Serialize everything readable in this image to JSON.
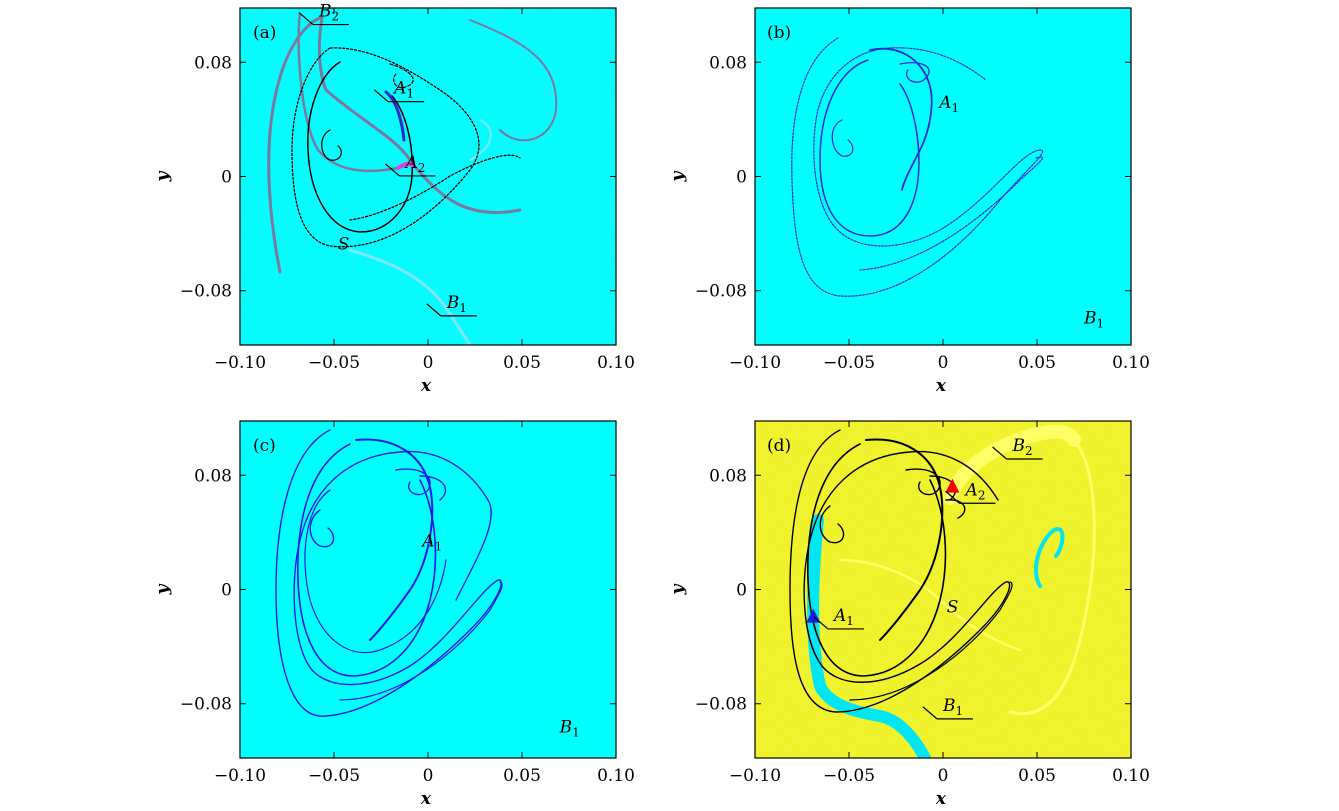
{
  "figure": {
    "background": "#ffffff",
    "colors": {
      "cyan": "#00ffff",
      "noise": "#1aa3c4",
      "yellow": "#f3f31a",
      "blue": "#1a1ae6",
      "black": "#000000",
      "grey_purple": "#7a7aa0",
      "pale_cyan": "#7fe6ff",
      "magenta": "#e040e0",
      "red": "#ff0000"
    }
  },
  "chart_data": [
    {
      "panel_label": "(a)",
      "type": "scatter",
      "xlabel": "x",
      "ylabel": "y",
      "xlim": [
        -0.1,
        0.1
      ],
      "ylim": [
        -0.118,
        0.118
      ],
      "xticks": [
        "−0.10",
        "−0.05",
        "0",
        "0.05",
        "0.10"
      ],
      "yticks": [
        "0.08",
        "0",
        "−0.08"
      ],
      "background": "cyan with speckled noise",
      "annotations": [
        {
          "label": "B",
          "sub": "2",
          "x": -0.058,
          "y": 0.112
        },
        {
          "label": "A",
          "sub": "1",
          "x": -0.018,
          "y": 0.058
        },
        {
          "label": "A",
          "sub": "2",
          "x": -0.012,
          "y": 0.006
        },
        {
          "label": "B",
          "sub": "1",
          "x": 0.01,
          "y": -0.092
        },
        {
          "label": "S",
          "x": -0.048,
          "y": -0.051
        }
      ]
    },
    {
      "panel_label": "(b)",
      "type": "scatter",
      "xlabel": "x",
      "ylabel": "y",
      "xlim": [
        -0.1,
        0.1
      ],
      "ylim": [
        -0.118,
        0.118
      ],
      "xticks": [
        "−0.10",
        "−0.05",
        "0",
        "0.05",
        "0.10"
      ],
      "yticks": [
        "0.08",
        "0",
        "−0.08"
      ],
      "background": "cyan",
      "annotations": [
        {
          "label": "A",
          "sub": "1",
          "x": -0.002,
          "y": 0.048
        },
        {
          "label": "B",
          "sub": "1",
          "x": 0.075,
          "y": -0.103
        }
      ]
    },
    {
      "panel_label": "(c)",
      "type": "scatter",
      "xlabel": "x",
      "ylabel": "y",
      "xlim": [
        -0.1,
        0.1
      ],
      "ylim": [
        -0.118,
        0.118
      ],
      "xticks": [
        "−0.10",
        "−0.05",
        "0",
        "0.05",
        "0.10"
      ],
      "yticks": [
        "0.08",
        "0",
        "−0.08"
      ],
      "background": "cyan",
      "annotations": [
        {
          "label": "A",
          "sub": "1",
          "x": -0.003,
          "y": 0.03
        },
        {
          "label": "B",
          "sub": "1",
          "x": 0.07,
          "y": -0.1
        }
      ]
    },
    {
      "panel_label": "(d)",
      "type": "scatter",
      "xlabel": "x",
      "ylabel": "y",
      "xlim": [
        -0.1,
        0.1
      ],
      "ylim": [
        -0.118,
        0.118
      ],
      "xticks": [
        "−0.10",
        "−0.05",
        "0",
        "0.05",
        "0.10"
      ],
      "yticks": [
        "0.08",
        "0",
        "−0.08"
      ],
      "background": "yellow with speckled noise",
      "markers": [
        {
          "shape": "triangle",
          "color": "#ff0000",
          "x": 0.005,
          "y": 0.072
        },
        {
          "shape": "triangle",
          "color": "#1a1ae6",
          "x": -0.069,
          "y": -0.019
        }
      ],
      "annotations": [
        {
          "label": "B",
          "sub": "2",
          "x": 0.037,
          "y": 0.097
        },
        {
          "label": "A",
          "sub": "2",
          "x": 0.012,
          "y": 0.066
        },
        {
          "label": "A",
          "sub": "1",
          "x": -0.058,
          "y": -0.022
        },
        {
          "label": "S",
          "x": 0.002,
          "y": -0.016
        },
        {
          "label": "B",
          "sub": "1",
          "x": 0.0,
          "y": -0.085
        }
      ]
    }
  ]
}
